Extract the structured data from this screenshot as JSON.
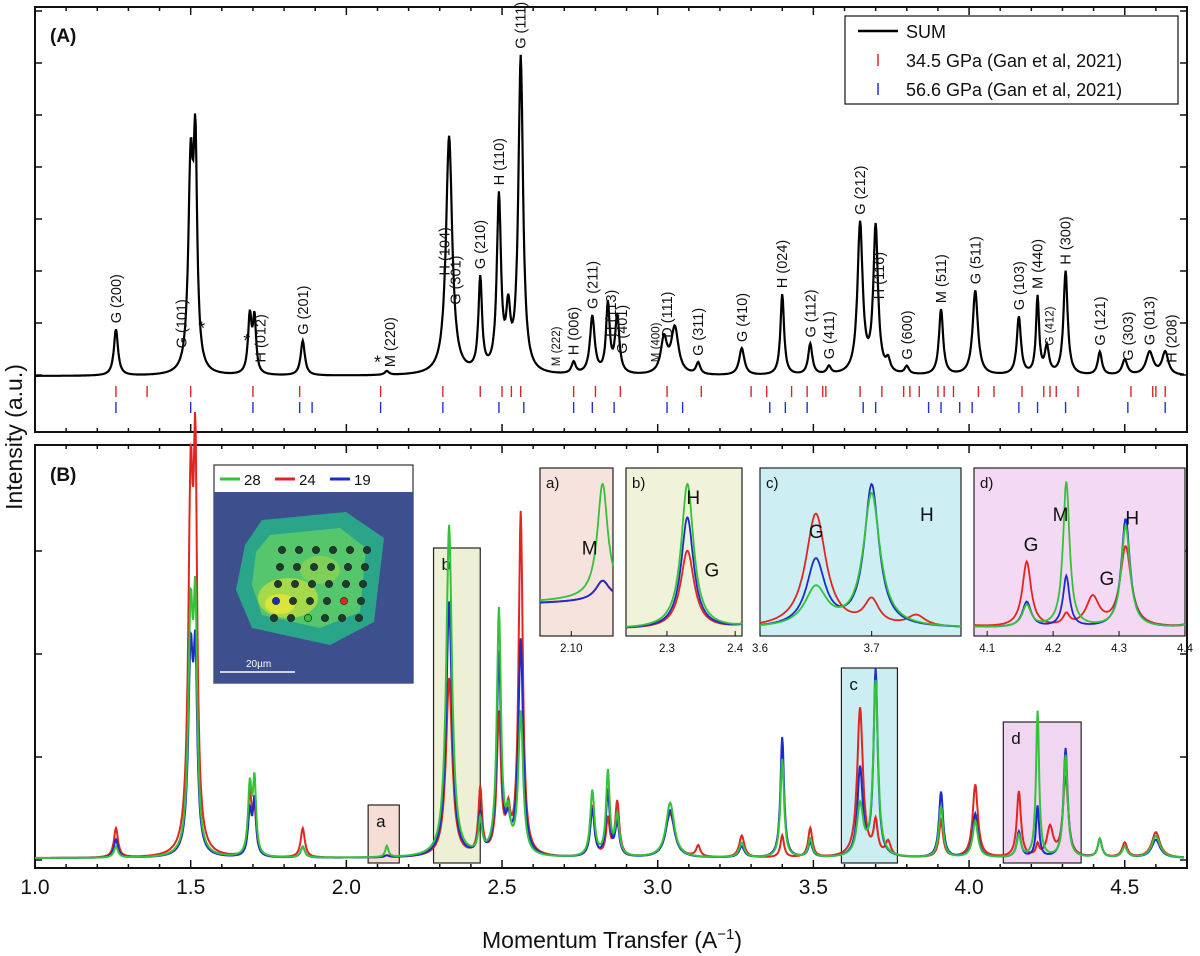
{
  "chart_data": [
    {
      "panel": "(A)",
      "type": "line",
      "xlabel": "Momentum Transfer (A⁻¹)",
      "ylabel": "Intensity (a.u.)",
      "xlim": [
        1.0,
        4.7
      ],
      "x_ticks": [
        "1.0",
        "1.5",
        "2.0",
        "2.5",
        "3.0",
        "3.5",
        "4.0",
        "4.5"
      ],
      "legend_position": "top-right",
      "legend": [
        {
          "name": "SUM",
          "color": "#000000",
          "marker": "line"
        },
        {
          "name": "34.5 GPa (Gan et al, 2021)",
          "color": "#d62728",
          "marker": "tick"
        },
        {
          "name": "56.6 GPa (Gan et al, 2021)",
          "color": "#2233cc",
          "marker": "tick"
        }
      ],
      "series": [
        {
          "name": "SUM",
          "color": "#000000",
          "peaks": [
            [
              1.26,
              0.12,
              0.008
            ],
            [
              1.5,
              0.52,
              0.009
            ],
            [
              1.515,
              0.54,
              0.007
            ],
            [
              1.69,
              0.15,
              0.007
            ],
            [
              1.705,
              0.14,
              0.006
            ],
            [
              1.86,
              0.09,
              0.008
            ],
            [
              2.13,
              0.01,
              0.008
            ],
            [
              2.33,
              0.62,
              0.012
            ],
            [
              2.43,
              0.24,
              0.007
            ],
            [
              2.49,
              0.45,
              0.008
            ],
            [
              2.52,
              0.14,
              0.008
            ],
            [
              2.56,
              0.82,
              0.009
            ],
            [
              2.73,
              0.03,
              0.008
            ],
            [
              2.79,
              0.15,
              0.009
            ],
            [
              2.84,
              0.18,
              0.007
            ],
            [
              2.87,
              0.15,
              0.008
            ],
            [
              3.02,
              0.09,
              0.012
            ],
            [
              3.055,
              0.12,
              0.014
            ],
            [
              3.13,
              0.03,
              0.008
            ],
            [
              3.27,
              0.07,
              0.01
            ],
            [
              3.4,
              0.21,
              0.007
            ],
            [
              3.49,
              0.08,
              0.008
            ],
            [
              3.55,
              0.02,
              0.008
            ],
            [
              3.65,
              0.39,
              0.01
            ],
            [
              3.7,
              0.38,
              0.009
            ],
            [
              3.74,
              0.03,
              0.008
            ],
            [
              3.8,
              0.02,
              0.008
            ],
            [
              3.91,
              0.17,
              0.008
            ],
            [
              4.02,
              0.22,
              0.01
            ],
            [
              4.16,
              0.15,
              0.008
            ],
            [
              4.22,
              0.2,
              0.006
            ],
            [
              4.25,
              0.07,
              0.008
            ],
            [
              4.31,
              0.27,
              0.008
            ],
            [
              4.42,
              0.06,
              0.008
            ],
            [
              4.5,
              0.04,
              0.01
            ],
            [
              4.58,
              0.06,
              0.014
            ],
            [
              4.63,
              0.06,
              0.012
            ]
          ],
          "baseline": 0.005
        },
        {
          "name": "34.5 GPa (Gan et al, 2021)",
          "color": "#d62728",
          "type": "ticks",
          "x": [
            1.26,
            1.36,
            1.5,
            1.7,
            1.85,
            2.11,
            2.31,
            2.43,
            2.5,
            2.53,
            2.56,
            2.73,
            2.8,
            2.88,
            3.03,
            3.14,
            3.3,
            3.35,
            3.43,
            3.48,
            3.53,
            3.54,
            3.65,
            3.72,
            3.79,
            3.81,
            3.84,
            3.9,
            3.92,
            3.95,
            4.03,
            4.08,
            4.17,
            4.24,
            4.26,
            4.28,
            4.35,
            4.52,
            4.59,
            4.6,
            4.63
          ]
        },
        {
          "name": "56.6 GPa (Gan et al, 2021)",
          "color": "#2233cc",
          "type": "ticks",
          "x": [
            1.26,
            1.5,
            1.7,
            1.85,
            1.89,
            2.11,
            2.31,
            2.49,
            2.57,
            2.73,
            2.79,
            2.86,
            3.03,
            3.08,
            3.36,
            3.41,
            3.48,
            3.66,
            3.7,
            3.87,
            3.91,
            3.97,
            4.01,
            4.16,
            4.22,
            4.31,
            4.51,
            4.63
          ]
        }
      ],
      "annotations": [
        {
          "text": "G (200)",
          "x": 1.26
        },
        {
          "text": "G (101)",
          "x": 1.47
        },
        {
          "text": "*",
          "x": 1.535
        },
        {
          "text": "*",
          "x": 1.68
        },
        {
          "text": "H (012)",
          "x": 1.725
        },
        {
          "text": "G (201)",
          "x": 1.86
        },
        {
          "text": "*",
          "x": 2.1
        },
        {
          "text": "M (220)",
          "x": 2.14
        },
        {
          "text": "H (104)",
          "x": 2.315
        },
        {
          "text": "G (301)",
          "x": 2.35
        },
        {
          "text": "G (210)",
          "x": 2.43
        },
        {
          "text": "H (110)",
          "x": 2.49
        },
        {
          "text": "G (111)",
          "x": 2.56
        },
        {
          "text": "M (222)",
          "x": 2.67
        },
        {
          "text": "H (006)",
          "x": 2.73
        },
        {
          "text": "G (211)",
          "x": 2.79
        },
        {
          "text": "H (113)",
          "x": 2.85
        },
        {
          "text": "G (401)",
          "x": 2.885
        },
        {
          "text": "M (400)",
          "x": 2.99
        },
        {
          "text": "D (111)",
          "x": 3.03
        },
        {
          "text": "G (311)",
          "x": 3.13
        },
        {
          "text": "G (410)",
          "x": 3.27
        },
        {
          "text": "H (024)",
          "x": 3.4
        },
        {
          "text": "G (112)",
          "x": 3.49
        },
        {
          "text": "G (411)",
          "x": 3.55
        },
        {
          "text": "G (212)",
          "x": 3.65
        },
        {
          "text": "H (116)",
          "x": 3.71
        },
        {
          "text": "G (600)",
          "x": 3.8
        },
        {
          "text": "M (511)",
          "x": 3.91
        },
        {
          "text": "G (511)",
          "x": 4.02
        },
        {
          "text": "G (103)",
          "x": 4.16
        },
        {
          "text": "M (440)",
          "x": 4.22
        },
        {
          "text": "G (412)",
          "x": 4.255
        },
        {
          "text": "H (300)",
          "x": 4.31
        },
        {
          "text": "G (121)",
          "x": 4.42
        },
        {
          "text": "G (303)",
          "x": 4.51
        },
        {
          "text": "G (013)",
          "x": 4.58
        },
        {
          "text": "H (208)",
          "x": 4.65
        }
      ]
    },
    {
      "panel": "(B)",
      "type": "line",
      "xlabel": "Momentum Transfer (A⁻¹)",
      "ylabel": "Intensity (a.u.)",
      "xlim": [
        1.0,
        4.7
      ],
      "x_ticks": [
        "1.0",
        "1.5",
        "2.0",
        "2.5",
        "3.0",
        "3.5",
        "4.0",
        "4.5"
      ],
      "series": [
        {
          "name": "24",
          "color": "#e0261f",
          "peaks": [
            [
              1.26,
              0.08,
              0.008
            ],
            [
              1.5,
              0.96,
              0.009
            ],
            [
              1.515,
              0.96,
              0.007
            ],
            [
              1.69,
              0.17,
              0.007
            ],
            [
              1.705,
              0.12,
              0.006
            ],
            [
              1.86,
              0.08,
              0.008
            ],
            [
              2.13,
              0.005,
              0.008
            ],
            [
              2.33,
              0.49,
              0.012
            ],
            [
              2.43,
              0.18,
              0.007
            ],
            [
              2.49,
              0.38,
              0.008
            ],
            [
              2.52,
              0.1,
              0.008
            ],
            [
              2.56,
              0.94,
              0.008
            ],
            [
              2.79,
              0.14,
              0.008
            ],
            [
              2.84,
              0.1,
              0.007
            ],
            [
              2.87,
              0.15,
              0.008
            ],
            [
              3.04,
              0.12,
              0.018
            ],
            [
              3.13,
              0.03,
              0.008
            ],
            [
              3.27,
              0.06,
              0.01
            ],
            [
              3.4,
              0.06,
              0.007
            ],
            [
              3.49,
              0.08,
              0.008
            ],
            [
              3.65,
              0.41,
              0.011
            ],
            [
              3.7,
              0.09,
              0.008
            ],
            [
              3.74,
              0.04,
              0.01
            ],
            [
              3.91,
              0.1,
              0.008
            ],
            [
              4.02,
              0.2,
              0.01
            ],
            [
              4.16,
              0.18,
              0.008
            ],
            [
              4.22,
              0.03,
              0.006
            ],
            [
              4.26,
              0.08,
              0.012
            ],
            [
              4.31,
              0.22,
              0.01
            ],
            [
              4.42,
              0.05,
              0.008
            ],
            [
              4.5,
              0.04,
              0.01
            ],
            [
              4.6,
              0.07,
              0.016
            ]
          ],
          "baseline": 0.005
        },
        {
          "name": "19",
          "color": "#1c2cc8",
          "peaks": [
            [
              1.26,
              0.05,
              0.008
            ],
            [
              1.5,
              0.53,
              0.009
            ],
            [
              1.515,
              0.48,
              0.007
            ],
            [
              1.69,
              0.12,
              0.007
            ],
            [
              1.705,
              0.15,
              0.006
            ],
            [
              1.86,
              0.03,
              0.008
            ],
            [
              2.13,
              0.005,
              0.008
            ],
            [
              2.33,
              0.7,
              0.011
            ],
            [
              2.43,
              0.11,
              0.007
            ],
            [
              2.49,
              0.55,
              0.008
            ],
            [
              2.52,
              0.07,
              0.008
            ],
            [
              2.56,
              0.59,
              0.009
            ],
            [
              2.79,
              0.13,
              0.008
            ],
            [
              2.84,
              0.18,
              0.007
            ],
            [
              2.87,
              0.09,
              0.008
            ],
            [
              3.04,
              0.13,
              0.016
            ],
            [
              3.27,
              0.03,
              0.01
            ],
            [
              3.4,
              0.33,
              0.007
            ],
            [
              3.49,
              0.04,
              0.008
            ],
            [
              3.65,
              0.24,
              0.01
            ],
            [
              3.7,
              0.51,
              0.008
            ],
            [
              3.91,
              0.18,
              0.008
            ],
            [
              4.02,
              0.12,
              0.01
            ],
            [
              4.16,
              0.07,
              0.008
            ],
            [
              4.22,
              0.14,
              0.006
            ],
            [
              4.31,
              0.3,
              0.008
            ],
            [
              4.42,
              0.05,
              0.008
            ],
            [
              4.5,
              0.03,
              0.01
            ],
            [
              4.6,
              0.05,
              0.016
            ]
          ],
          "baseline": 0.005
        },
        {
          "name": "28",
          "color": "#33c23a",
          "peaks": [
            [
              1.26,
              0.03,
              0.008
            ],
            [
              1.5,
              0.63,
              0.009
            ],
            [
              1.515,
              0.6,
              0.007
            ],
            [
              1.69,
              0.19,
              0.007
            ],
            [
              1.705,
              0.2,
              0.006
            ],
            [
              1.86,
              0.03,
              0.008
            ],
            [
              2.13,
              0.03,
              0.006
            ],
            [
              2.33,
              0.91,
              0.011
            ],
            [
              2.43,
              0.09,
              0.007
            ],
            [
              2.49,
              0.67,
              0.008
            ],
            [
              2.52,
              0.09,
              0.008
            ],
            [
              2.56,
              0.39,
              0.009
            ],
            [
              2.79,
              0.18,
              0.008
            ],
            [
              2.84,
              0.23,
              0.007
            ],
            [
              2.87,
              0.11,
              0.008
            ],
            [
              3.04,
              0.15,
              0.016
            ],
            [
              3.27,
              0.04,
              0.01
            ],
            [
              3.4,
              0.27,
              0.007
            ],
            [
              3.49,
              0.05,
              0.008
            ],
            [
              3.65,
              0.14,
              0.012
            ],
            [
              3.7,
              0.48,
              0.009
            ],
            [
              3.91,
              0.14,
              0.008
            ],
            [
              4.02,
              0.1,
              0.01
            ],
            [
              4.16,
              0.06,
              0.008
            ],
            [
              4.22,
              0.4,
              0.006
            ],
            [
              4.31,
              0.28,
              0.008
            ],
            [
              4.42,
              0.05,
              0.008
            ],
            [
              4.5,
              0.03,
              0.01
            ],
            [
              4.6,
              0.06,
              0.016
            ]
          ],
          "baseline": 0.005
        }
      ],
      "boxes": [
        {
          "label": "a",
          "x0": 2.07,
          "x1": 2.17,
          "color": "#f6ddd6"
        },
        {
          "label": "b",
          "x0": 2.28,
          "x1": 2.43,
          "color": "#eef0d6"
        },
        {
          "label": "c",
          "x0": 3.59,
          "x1": 3.77,
          "color": "#cbeef3"
        },
        {
          "label": "d",
          "x0": 4.11,
          "x1": 4.36,
          "color": "#f1d6f1"
        }
      ]
    }
  ],
  "panel_a": {
    "label": "(A)"
  },
  "panel_b": {
    "label": "(B)"
  },
  "y_axis_label": "Intensity (a.u.)",
  "x_axis_label": "Momentum Transfer (A",
  "x_axis_label_sup": "−1",
  "x_axis_label_end": ")",
  "x_tick_labels": [
    "1.0",
    "1.5",
    "2.0",
    "2.5",
    "3.0",
    "3.5",
    "4.0",
    "4.5"
  ],
  "box_labels": [
    "a",
    "b",
    "c",
    "d"
  ],
  "map_inset": {
    "legend": [
      {
        "label": "28",
        "color": "#33c23a"
      },
      {
        "label": "24",
        "color": "#e0261f"
      },
      {
        "label": "19",
        "color": "#1c2cc8"
      }
    ],
    "scale_bar": "20µm"
  },
  "zoom_insets": [
    {
      "tag": "a)",
      "xlim": [
        2.07,
        2.14
      ],
      "ticks": [
        "2.10"
      ],
      "labels": [
        "M"
      ],
      "bg": "#f7e3de"
    },
    {
      "tag": "b)",
      "xlim": [
        2.24,
        2.41
      ],
      "ticks": [
        "2.3",
        "2.4"
      ],
      "labels": [
        "H",
        "G"
      ],
      "bg": "#f0f2da"
    },
    {
      "tag": "c)",
      "xlim": [
        3.6,
        3.78
      ],
      "ticks": [
        "3.6",
        "3.7"
      ],
      "labels": [
        "G",
        "H"
      ],
      "bg": "#cdeff4"
    },
    {
      "tag": "d)",
      "xlim": [
        4.08,
        4.4
      ],
      "ticks": [
        "4.1",
        "4.2",
        "4.3",
        "4.4"
      ],
      "labels": [
        "G",
        "M",
        "H",
        "G"
      ],
      "bg": "#f3d9f3"
    }
  ]
}
